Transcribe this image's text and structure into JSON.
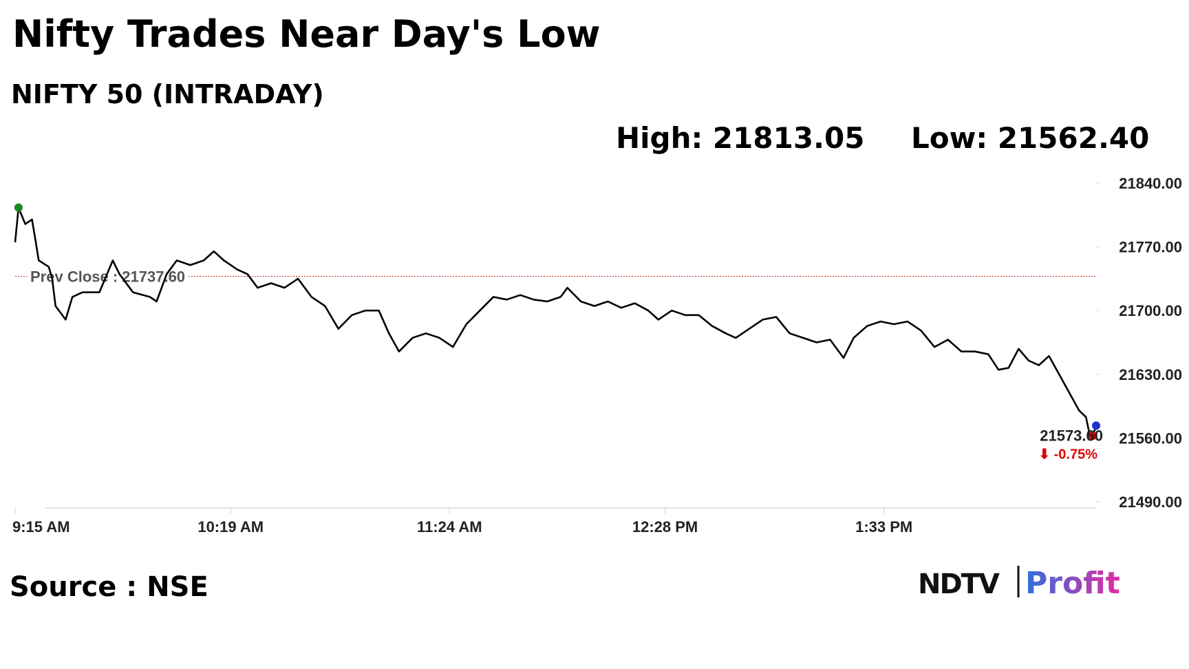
{
  "chart_data": {
    "type": "line",
    "title": "Nifty Trades Near Day's Low",
    "subtitle": "NIFTY 50 (INTRADAY)",
    "high_label": "High: 21813.05",
    "low_label": "Low: 21562.40",
    "prev_close": 21737.6,
    "prev_close_label": "Prev Close : 21737.60",
    "prev_close_color": "#d62728",
    "last_label": "21573.60",
    "change_label": "⬇ -0.75%",
    "change_color": "#e00000",
    "high_color": "#1a8a1a",
    "low_color": "#e00000",
    "last_color": "#1f2fd0",
    "source": "Source : NSE",
    "logo": [
      "NDTV",
      "Profit"
    ],
    "x": [
      "9:15 AM",
      "9:16 AM",
      "9:18 AM",
      "9:20 AM",
      "9:21 AM",
      "9:22 AM",
      "9:25 AM",
      "9:26 AM",
      "9:27 AM",
      "9:30 AM",
      "9:32 AM",
      "9:35 AM",
      "9:40 AM",
      "9:44 AM",
      "9:46 AM",
      "9:50 AM",
      "9:55 AM",
      "9:57 AM",
      "10:00 AM",
      "10:03 AM",
      "10:07 AM",
      "10:11 AM",
      "10:14 AM",
      "10:17 AM",
      "10:21 AM",
      "10:24 AM",
      "10:27 AM",
      "10:31 AM",
      "10:35 AM",
      "10:39 AM",
      "10:43 AM",
      "10:47 AM",
      "10:51 AM",
      "10:55 AM",
      "10:59 AM",
      "11:03 AM",
      "11:06 AM",
      "11:09 AM",
      "11:13 AM",
      "11:17 AM",
      "11:21 AM",
      "11:25 AM",
      "11:29 AM",
      "11:33 AM",
      "11:37 AM",
      "11:41 AM",
      "11:45 AM",
      "11:49 AM",
      "11:53 AM",
      "11:57 AM",
      "11:59 AM",
      "12:03 PM",
      "12:07 PM",
      "12:11 PM",
      "12:15 PM",
      "12:19 PM",
      "12:23 PM",
      "12:26 PM",
      "12:30 PM",
      "12:34 PM",
      "12:38 PM",
      "12:42 PM",
      "12:46 PM",
      "12:49 PM",
      "12:53 PM",
      "12:57 PM",
      "1:01 PM",
      "1:05 PM",
      "1:09 PM",
      "1:13 PM",
      "1:17 PM",
      "1:21 PM",
      "1:24 PM",
      "1:28 PM",
      "1:32 PM",
      "1:36 PM",
      "1:40 PM",
      "1:44 PM",
      "1:48 PM",
      "1:52 PM",
      "1:56 PM",
      "2:00 PM",
      "2:04 PM",
      "2:07 PM",
      "2:10 PM",
      "2:13 PM",
      "2:16 PM",
      "2:19 PM",
      "2:22 PM",
      "2:25 PM",
      "2:28 PM",
      "2:31 PM",
      "2:33 PM",
      "2:34 PM",
      "2:35 PM",
      "2:36 PM"
    ],
    "series": [
      {
        "color": "#000000",
        "values": [
          21775,
          21813.05,
          21795,
          21800,
          21778,
          21755,
          21748,
          21735,
          21705,
          21690,
          21715,
          21720,
          21720,
          21755,
          21740,
          21720,
          21715,
          21710,
          21740,
          21755,
          21750,
          21755,
          21765,
          21755,
          21745,
          21740,
          21725,
          21730,
          21725,
          21735,
          21715,
          21705,
          21680,
          21695,
          21700,
          21700,
          21675,
          21655,
          21670,
          21675,
          21670,
          21660,
          21685,
          21700,
          21715,
          21712,
          21717,
          21712,
          21710,
          21715,
          21725,
          21710,
          21705,
          21710,
          21703,
          21708,
          21700,
          21690,
          21700,
          21695,
          21695,
          21683,
          21675,
          21670,
          21680,
          21690,
          21693,
          21675,
          21670,
          21665,
          21668,
          21648,
          21670,
          21683,
          21688,
          21685,
          21688,
          21678,
          21660,
          21668,
          21655,
          21655,
          21652,
          21635,
          21637,
          21658,
          21645,
          21640,
          21650,
          21630,
          21610,
          21590,
          21583,
          21565,
          21562.4,
          21573.6
        ]
      }
    ],
    "xlim": [
      "9:15 AM",
      "2:36 PM"
    ],
    "xticks": [
      "9:15 AM",
      "10:19 AM",
      "11:24 AM",
      "12:28 PM",
      "1:33 PM"
    ],
    "ylim": [
      21490,
      21840
    ],
    "yticks": [
      {
        "value": 21490,
        "label": "21490.00"
      },
      {
        "value": 21560,
        "label": "21560.00"
      },
      {
        "value": 21630,
        "label": "21630.00"
      },
      {
        "value": 21700,
        "label": "21700.00"
      },
      {
        "value": 21770,
        "label": "21770.00"
      },
      {
        "value": 21840,
        "label": "21840.00"
      }
    ]
  }
}
